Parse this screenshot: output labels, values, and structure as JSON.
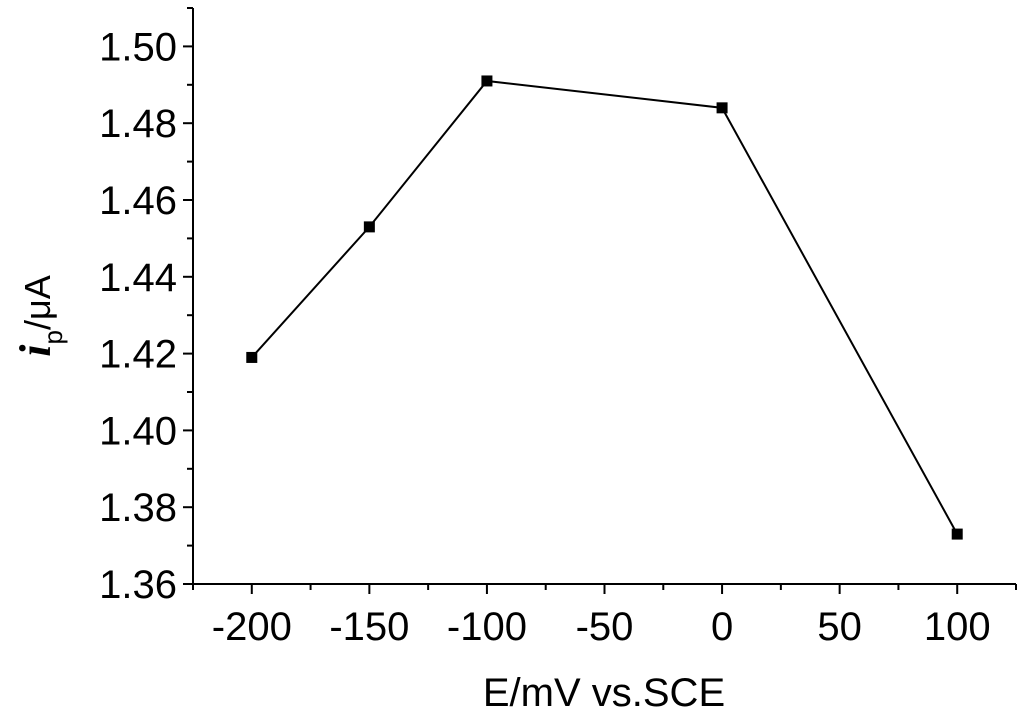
{
  "chart_data": {
    "type": "line",
    "title": "",
    "xlabel": "E/mV vs.SCE",
    "ylabel": {
      "symbol": "i",
      "subscript": "p",
      "rest": "/μA"
    },
    "xlim": [
      -225,
      125
    ],
    "ylim": [
      1.36,
      1.51
    ],
    "x_ticks": [
      "-200",
      "-150",
      "-100",
      "-50",
      "0",
      "50",
      "100"
    ],
    "x_tick_values": [
      -200,
      -150,
      -100,
      -50,
      0,
      50,
      100
    ],
    "y_ticks": [
      "1.36",
      "1.38",
      "1.40",
      "1.42",
      "1.44",
      "1.46",
      "1.48",
      "1.50"
    ],
    "y_tick_values": [
      1.36,
      1.38,
      1.4,
      1.42,
      1.44,
      1.46,
      1.48,
      1.5
    ],
    "grid": false,
    "marker": "square",
    "color": "#000000",
    "series": [
      {
        "x": [
          -200,
          -150,
          -100,
          0,
          100
        ],
        "y": [
          1.419,
          1.453,
          1.491,
          1.484,
          1.373
        ]
      }
    ]
  }
}
